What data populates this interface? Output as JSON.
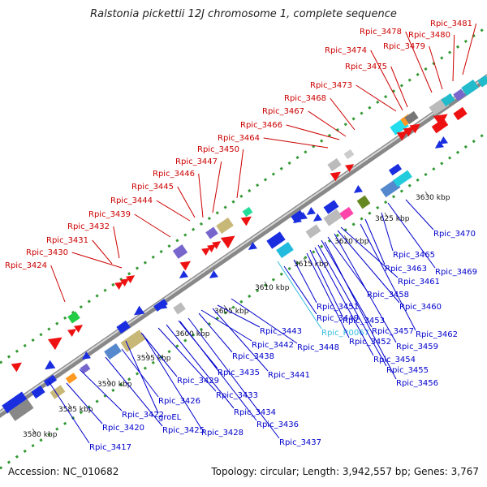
{
  "title": "Ralstonia pickettii 12J chromosome 1, complete sequence",
  "footer": {
    "accession": "Accession: NC_010682",
    "summary": "Topology: circular; Length: 3,942,557 bp; Genes: 3,767"
  },
  "scale_labels": [
    "3580 kbp",
    "3585 kbp",
    "3590 kbp",
    "3595 kbp",
    "3600 kbp",
    "3605 kbp",
    "3610 kbp",
    "3615 kbp",
    "3620 kbp",
    "3625 kbp",
    "3630 kbp"
  ],
  "colors": {
    "forward_label": "#cc0000",
    "reverse_label": "#0000cc",
    "rna_label": "#33bbdd",
    "backbone": "#888888",
    "dots": "#339933"
  },
  "top_labels": [
    "Rpic_3424",
    "Rpic_3430",
    "Rpic_3431",
    "Rpic_3432",
    "Rpic_3439",
    "Rpic_3444",
    "Rpic_3445",
    "Rpic_3446",
    "Rpic_3447",
    "Rpic_3450",
    "Rpic_3464",
    "Rpic_3466",
    "Rpic_3467",
    "Rpic_3468",
    "Rpic_3473",
    "Rpic_3474",
    "Rpic_3475",
    "Rpic_3478",
    "Rpic_3479",
    "Rpic_3480",
    "Rpic_3481"
  ],
  "bottom_labels": [
    "Rpic_3417",
    "Rpic_3420",
    "Rpic_3422",
    "Rpic_3425",
    "Rpic_3426",
    "groEL",
    "Rpic_3428",
    "Rpic_3429",
    "Rpic_3433",
    "Rpic_3434",
    "Rpic_3436",
    "Rpic_3437",
    "Rpic_3435",
    "Rpic_3438",
    "Rpic_3441",
    "Rpic_3442",
    "Rpic_3443",
    "Rpic_3448",
    "Rpic_R0067",
    "Rpic_3449",
    "Rpic_3451",
    "Rpic_3452",
    "Rpic_3453",
    "Rpic_3454",
    "Rpic_3455",
    "Rpic_3456",
    "Rpic_3457",
    "Rpic_3458",
    "Rpic_3459",
    "Rpic_3460",
    "Rpic_3461",
    "Rpic_3462",
    "Rpic_3463",
    "Rpic_3465",
    "Rpic_3469",
    "Rpic_3470"
  ]
}
